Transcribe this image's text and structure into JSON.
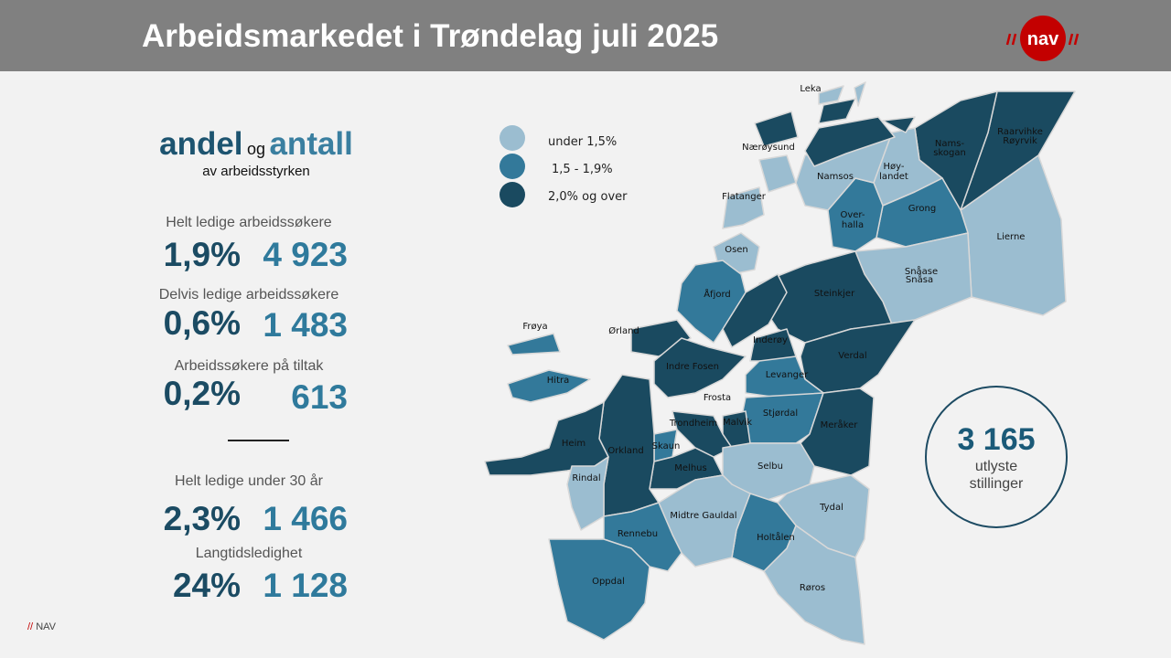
{
  "header": {
    "title": "Arbeidsmarkedet i Trøndelag juli 2025",
    "logo_text": "nav"
  },
  "heading": {
    "word1": "andel",
    "word2": "og",
    "word3": "antall",
    "sub": "av arbeidsstyrken"
  },
  "stats": [
    {
      "label": "Helt ledige arbeidssøkere",
      "percent": "1,9%",
      "count": "4 923"
    },
    {
      "label": "Delvis ledige arbeidssøkere",
      "percent": "0,6%",
      "count": "1 483"
    },
    {
      "label": "Arbeidssøkere på tiltak",
      "percent": "0,2%",
      "count": "613"
    },
    {
      "label": "Helt ledige under 30 år",
      "percent": "2,3%",
      "count": "1 466"
    },
    {
      "label": "Langtidsledighet",
      "percent": "24%",
      "count": "1 128"
    }
  ],
  "legend": [
    {
      "label": "under 1,5%",
      "color": "#9bbdd0"
    },
    {
      "label": "1,5 - 1,9%",
      "color": "#33799a"
    },
    {
      "label": "2,0% og over",
      "color": "#1a4a60"
    }
  ],
  "vacancies": {
    "count": "3 165",
    "line1": "utlyste",
    "line2": "stillinger"
  },
  "footer": {
    "slashes": "//",
    "text": "NAV"
  },
  "colors": {
    "light": "#9bbdd0",
    "mid": "#33799a",
    "dark": "#1a4a60"
  },
  "municipalities": [
    {
      "name": "Lierne",
      "level": "light"
    },
    {
      "name": "Raarvihke Røyrvik",
      "level": "dark"
    },
    {
      "name": "Namsskogan",
      "level": "dark"
    },
    {
      "name": "Høylandet",
      "level": "light"
    },
    {
      "name": "Grong",
      "level": "mid"
    },
    {
      "name": "Overhalla",
      "level": "mid"
    },
    {
      "name": "Namsos",
      "level": "light"
    },
    {
      "name": "Nærøysund",
      "level": "dark"
    },
    {
      "name": "Leka",
      "level": "light"
    },
    {
      "name": "Flatanger",
      "level": "light"
    },
    {
      "name": "Osen",
      "level": "light"
    },
    {
      "name": "Snåase Snåsa",
      "level": "light"
    },
    {
      "name": "Steinkjer",
      "level": "dark"
    },
    {
      "name": "Åfjord",
      "level": "mid"
    },
    {
      "name": "Ørland",
      "level": "dark"
    },
    {
      "name": "Indre Fosen",
      "level": "dark"
    },
    {
      "name": "Inderøy",
      "level": "dark"
    },
    {
      "name": "Verdal",
      "level": "dark"
    },
    {
      "name": "Levanger",
      "level": "mid"
    },
    {
      "name": "Frosta",
      "level": "dark"
    },
    {
      "name": "Stjørdal",
      "level": "mid"
    },
    {
      "name": "Meråker",
      "level": "dark"
    },
    {
      "name": "Malvik",
      "level": "dark"
    },
    {
      "name": "Trondheim",
      "level": "dark"
    },
    {
      "name": "Skaun",
      "level": "mid"
    },
    {
      "name": "Melhus",
      "level": "dark"
    },
    {
      "name": "Selbu",
      "level": "light"
    },
    {
      "name": "Tydal",
      "level": "light"
    },
    {
      "name": "Røros",
      "level": "light"
    },
    {
      "name": "Holtålen",
      "level": "mid"
    },
    {
      "name": "Midtre Gauldal",
      "level": "light"
    },
    {
      "name": "Orkland",
      "level": "dark"
    },
    {
      "name": "Hitra",
      "level": "mid"
    },
    {
      "name": "Frøya",
      "level": "mid"
    },
    {
      "name": "Heim",
      "level": "dark"
    },
    {
      "name": "Rindal",
      "level": "light"
    },
    {
      "name": "Rennebu",
      "level": "mid"
    },
    {
      "name": "Oppdal",
      "level": "mid"
    }
  ],
  "map_labels": {
    "lierne": "Lierne",
    "royrvik1": "Raarvihke",
    "royrvik2": "Røyrvik",
    "namsskogan1": "Nams-",
    "namsskogan2": "skogan",
    "hoylandet1": "Høy-",
    "hoylandet2": "landet",
    "grong": "Grong",
    "overhalla1": "Over-",
    "overhalla2": "halla",
    "namsos": "Namsos",
    "naroysund": "Nærøysund",
    "leka": "Leka",
    "flatanger": "Flatanger",
    "osen": "Osen",
    "snasa1": "Snåase",
    "snasa2": "Snåsa",
    "steinkjer": "Steinkjer",
    "afjord": "Åfjord",
    "orland": "Ørland",
    "indrefosen": "Indre Fosen",
    "inderoy": "Inderøy",
    "verdal": "Verdal",
    "levanger": "Levanger",
    "frosta": "Frosta",
    "stjordal": "Stjørdal",
    "meraker": "Meråker",
    "malvik": "Malvik",
    "trondheim": "Trondheim",
    "skaun": "Skaun",
    "melhus": "Melhus",
    "selbu": "Selbu",
    "tydal": "Tydal",
    "roros": "Røros",
    "holtalen": "Holtålen",
    "midtregauldal": "Midtre Gauldal",
    "orkland": "Orkland",
    "hitra": "Hitra",
    "froya": "Frøya",
    "heim": "Heim",
    "rindal": "Rindal",
    "rennebu": "Rennebu",
    "oppdal": "Oppdal"
  }
}
